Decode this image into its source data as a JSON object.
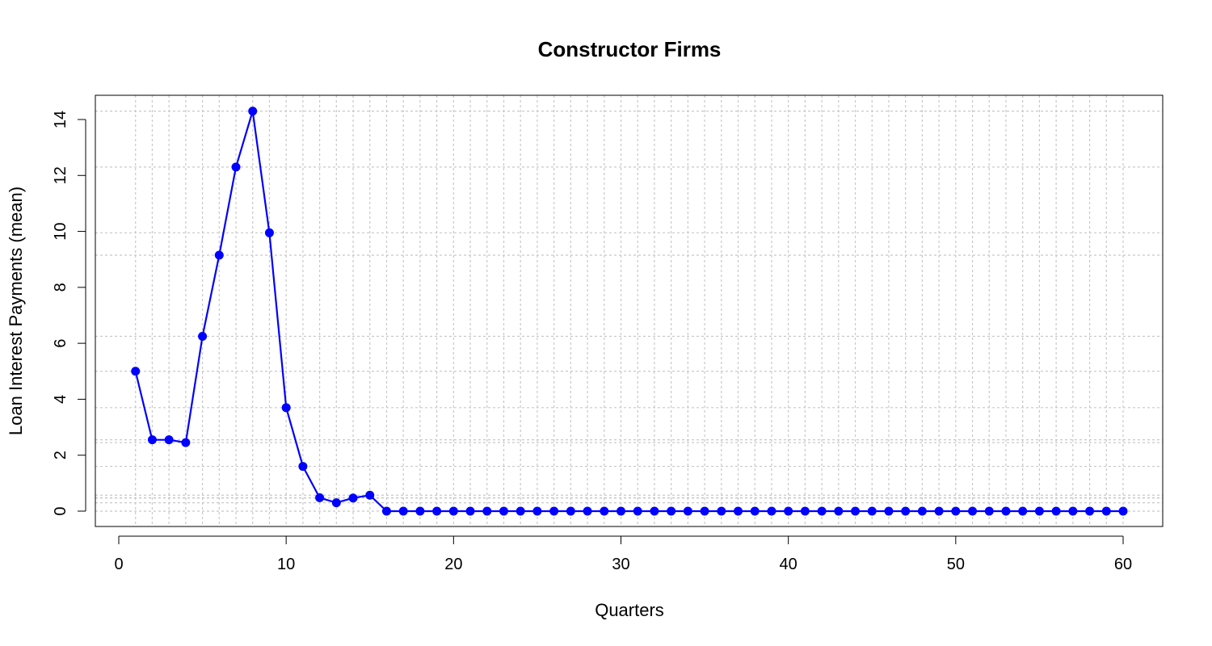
{
  "chart_data": {
    "type": "line",
    "title": "Constructor Firms",
    "xlabel": "Quarters",
    "ylabel": "Loan Interest Payments (mean)",
    "xlim": [
      0,
      60
    ],
    "ylim": [
      0,
      14.3
    ],
    "x_ticks": [
      0,
      10,
      20,
      30,
      40,
      50,
      60
    ],
    "y_ticks": [
      0,
      2,
      4,
      6,
      8,
      10,
      12,
      14
    ],
    "grid": true,
    "colors": {
      "series": "#0000ff",
      "grid": "#c8c8c8",
      "axes": "#000000"
    },
    "series": [
      {
        "x": [
          1,
          2,
          3,
          4,
          5,
          6,
          7,
          8,
          9,
          10,
          11,
          12,
          13,
          14,
          15,
          16,
          17,
          18,
          19,
          20,
          21,
          22,
          23,
          24,
          25,
          26,
          27,
          28,
          29,
          30,
          31,
          32,
          33,
          34,
          35,
          36,
          37,
          38,
          39,
          40,
          41,
          42,
          43,
          44,
          45,
          46,
          47,
          48,
          49,
          50,
          51,
          52,
          53,
          54,
          55,
          56,
          57,
          58,
          59,
          60
        ],
        "values": [
          5.0,
          2.55,
          2.55,
          2.45,
          6.25,
          9.15,
          12.3,
          14.3,
          9.95,
          3.7,
          1.6,
          0.48,
          0.3,
          0.47,
          0.57,
          0,
          0,
          0,
          0,
          0,
          0,
          0,
          0,
          0,
          0,
          0,
          0,
          0,
          0,
          0,
          0,
          0,
          0,
          0,
          0,
          0,
          0,
          0,
          0,
          0,
          0,
          0,
          0,
          0,
          0,
          0,
          0,
          0,
          0,
          0,
          0,
          0,
          0,
          0,
          0,
          0,
          0,
          0,
          0,
          0
        ]
      }
    ]
  }
}
